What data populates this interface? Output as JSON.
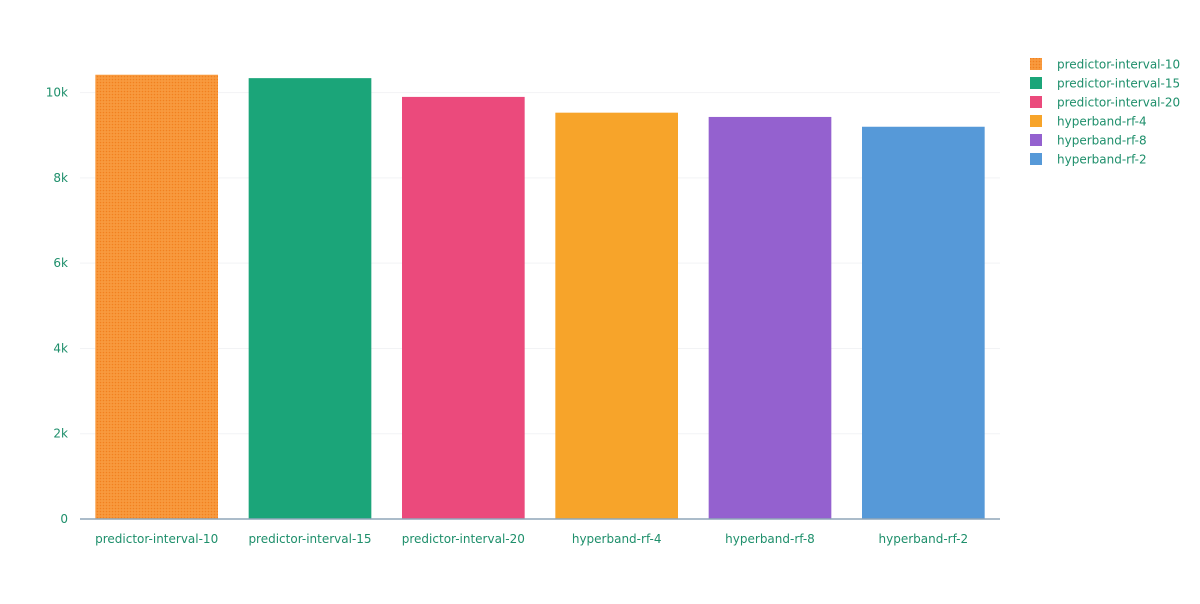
{
  "chart_data": {
    "type": "bar",
    "categories": [
      "predictor-interval-10",
      "predictor-interval-15",
      "predictor-interval-20",
      "hyperband-rf-4",
      "hyperband-rf-8",
      "hyperband-rf-2"
    ],
    "values": [
      10420,
      10340,
      9900,
      9530,
      9430,
      9200
    ],
    "colors": [
      "#f89a3f",
      "#1ba579",
      "#eb4a7c",
      "#f7a42a",
      "#9461cf",
      "#5699d8"
    ],
    "patterned": [
      true,
      false,
      false,
      false,
      false,
      false
    ],
    "legend": [
      {
        "label": "predictor-interval-10",
        "color": "#f89a3f",
        "patterned": true
      },
      {
        "label": "predictor-interval-15",
        "color": "#1ba579",
        "patterned": false
      },
      {
        "label": "predictor-interval-20",
        "color": "#eb4a7c",
        "patterned": false
      },
      {
        "label": "hyperband-rf-4",
        "color": "#f7a42a",
        "patterned": false
      },
      {
        "label": "hyperband-rf-8",
        "color": "#9461cf",
        "patterned": false
      },
      {
        "label": "hyperband-rf-2",
        "color": "#5699d8",
        "patterned": false
      }
    ],
    "y_ticks": [
      {
        "value": 0,
        "label": "0"
      },
      {
        "value": 2000,
        "label": "2k"
      },
      {
        "value": 4000,
        "label": "4k"
      },
      {
        "value": 6000,
        "label": "6k"
      },
      {
        "value": 8000,
        "label": "8k"
      },
      {
        "value": 10000,
        "label": "10k"
      }
    ],
    "ylim": [
      0,
      11000
    ],
    "title": "",
    "xlabel": "",
    "ylabel": "",
    "grid": true,
    "legend_position": "top-right",
    "text_color": "#1e8f6b",
    "axis_color": "#8fa6b8",
    "grid_color": "#f2f3f5"
  }
}
